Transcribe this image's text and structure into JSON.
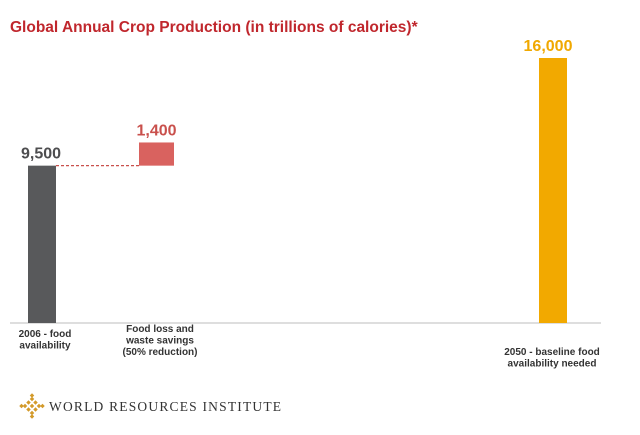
{
  "chart_data": {
    "type": "bar",
    "title": "Global Annual Crop Production (in trillions of calories)*",
    "categories": [
      [
        "2006 - food",
        "availability"
      ],
      [
        "Food loss and",
        "waste savings",
        "(50% reduction)"
      ],
      [
        "2050 - baseline food",
        "availability needed"
      ]
    ],
    "values": [
      9500,
      1400,
      16000
    ],
    "bases": [
      0,
      9500,
      0
    ],
    "value_labels": [
      "9,500",
      "1,400",
      "16,000"
    ],
    "ylim": [
      0,
      16000
    ],
    "grid": false,
    "legend": "none"
  },
  "colors": {
    "title": "#c0272d",
    "bar_2006": "#58595b",
    "bar_savings": "#d9625f",
    "bar_2050": "#f2a900",
    "label_2006": "#4d4d4f",
    "label_savings": "#c9504c",
    "label_2050": "#f0a800",
    "connector": "#c9504c"
  },
  "footer": {
    "logo_icon": "wri-diamond-logo-icon",
    "logo_text": "WORLD RESOURCES INSTITUTE"
  }
}
